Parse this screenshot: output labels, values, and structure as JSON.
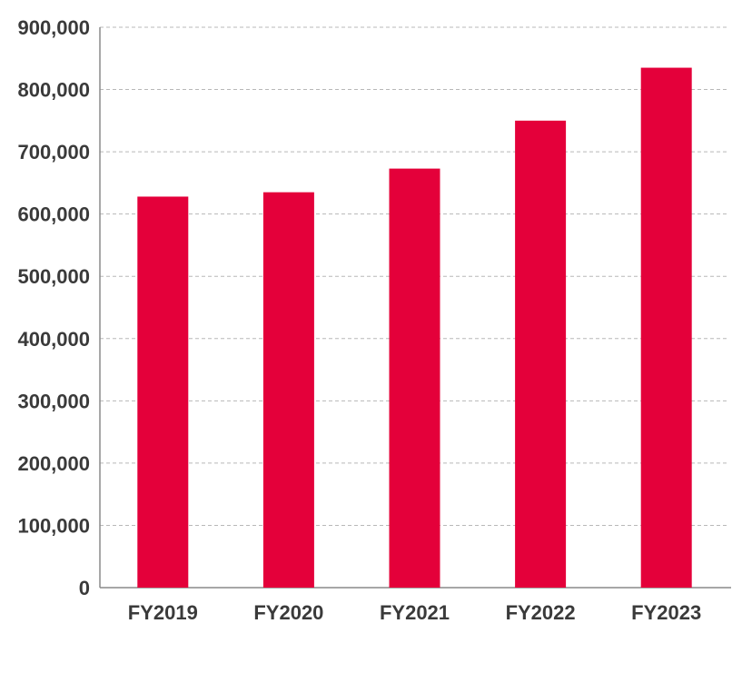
{
  "chart_data": {
    "type": "bar",
    "title": "",
    "xlabel": "",
    "ylabel": "",
    "categories": [
      "FY2019",
      "FY2020",
      "FY2021",
      "FY2022",
      "FY2023"
    ],
    "values": [
      628000,
      635000,
      673000,
      750000,
      835000
    ],
    "ylim": [
      0,
      900000
    ],
    "yticks": [
      0,
      100000,
      200000,
      300000,
      400000,
      500000,
      600000,
      700000,
      800000,
      900000
    ],
    "ytick_labels": [
      "0",
      "100,000",
      "200,000",
      "300,000",
      "400,000",
      "500,000",
      "600,000",
      "700,000",
      "800,000",
      "900,000"
    ],
    "bar_color": "#e4003a",
    "grid": "horizontal-dashed",
    "legend": "none"
  }
}
